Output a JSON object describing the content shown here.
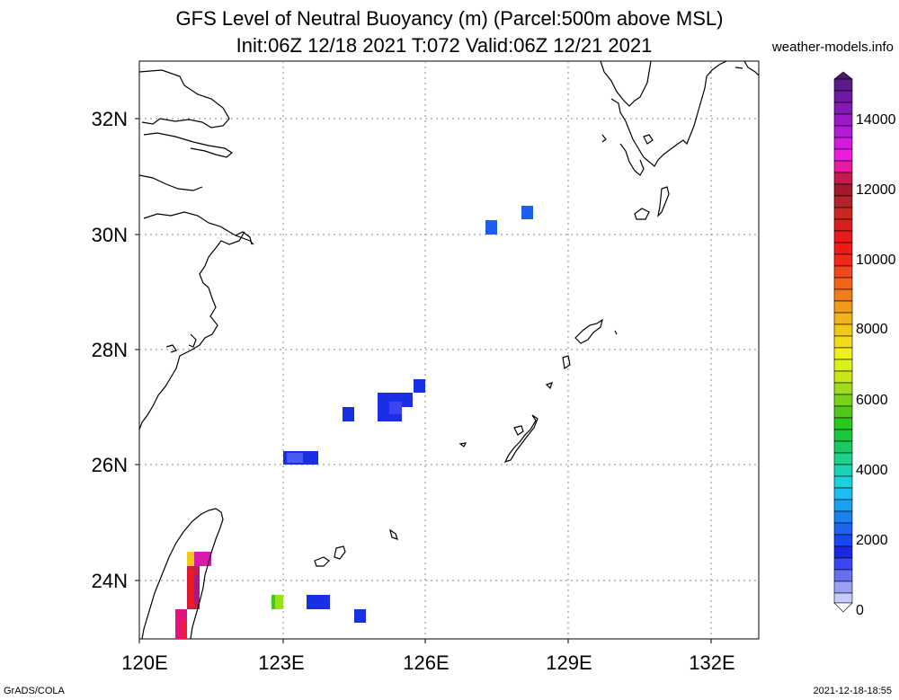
{
  "header": {
    "title": "GFS Level of Neutral Buoyancy (m) (Parcel:500m above MSL)",
    "subtitle": "Init:06Z 12/18 2021 T:072 Valid:06Z 12/21 2021",
    "credit": "weather-models.info"
  },
  "footer": {
    "left": "GrADS/COLA",
    "right": "2021-12-18-18:55"
  },
  "map": {
    "lon_labels": [
      "120E",
      "123E",
      "126E",
      "129E",
      "132E"
    ],
    "lat_labels": [
      "24N",
      "26N",
      "28N",
      "30N",
      "32N"
    ]
  },
  "colorbar": {
    "labels": [
      "0",
      "2000",
      "4000",
      "6000",
      "8000",
      "10000",
      "12000",
      "14000"
    ]
  },
  "colors": {
    "grid": "#888888",
    "coast": "#000000",
    "lnb_blue": "#1a2ee6",
    "lnb_lightblue": "#3c6cf0"
  }
}
